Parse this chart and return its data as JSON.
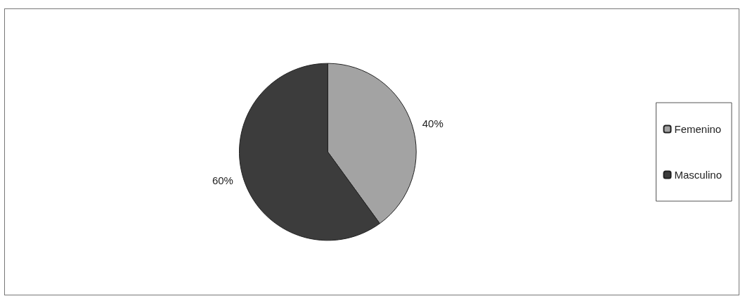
{
  "chart_data": {
    "type": "pie",
    "categories": [
      "Femenino",
      "Masculino"
    ],
    "values": [
      40,
      60
    ],
    "colors": [
      "#a3a3a3",
      "#3c3c3c"
    ],
    "value_labels": [
      "40%",
      "60%"
    ],
    "legend": "right"
  }
}
